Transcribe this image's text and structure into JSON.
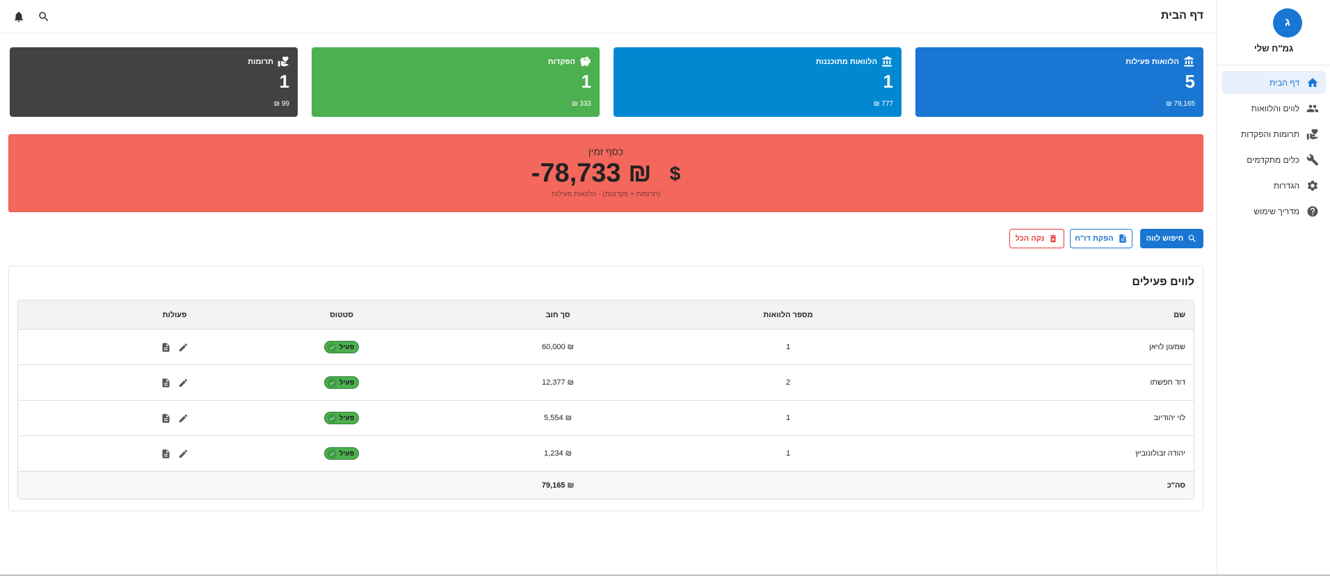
{
  "app": {
    "avatar_letter": "ג",
    "name": "גמ\"ח שלי"
  },
  "sidebar": {
    "items": [
      {
        "label": "דף הבית",
        "icon": "home-icon",
        "active": true
      },
      {
        "label": "לווים והלוואות",
        "icon": "people-icon"
      },
      {
        "label": "תרומות והפקדות",
        "icon": "volunteer-hand-heart-icon"
      },
      {
        "label": "כלים מתקדמים",
        "icon": "wrench-icon"
      },
      {
        "label": "הגדרות",
        "icon": "gear-icon"
      },
      {
        "label": "מדריך שימוש",
        "icon": "help-circle-icon"
      }
    ]
  },
  "topbar": {
    "title": "דף הבית",
    "icons": [
      "search-icon",
      "bell-icon"
    ]
  },
  "stats": [
    {
      "label": "הלוואות פעילות",
      "count": "5",
      "sum": "79,165 ₪",
      "color": "#1976d2",
      "icon": "bank-icon"
    },
    {
      "label": "הלוואות מתוכננות",
      "count": "1",
      "sum": "777 ₪",
      "color": "#0288d1",
      "icon": "bank-icon"
    },
    {
      "label": "הפקדות",
      "count": "1",
      "sum": "333 ₪",
      "color": "#4caf50",
      "icon": "piggy-bank-icon"
    },
    {
      "label": "תרומות",
      "count": "1",
      "sum": "99 ₪",
      "color": "#424242",
      "icon": "hand-heart-icon"
    }
  ],
  "balance": {
    "label": "כסף זמין",
    "value": "-78,733 ₪",
    "currency_symbol": "$",
    "note": "(תרומות + פקדונות) - הלוואות פעילות",
    "color": "#f4675c"
  },
  "actions": {
    "search_label": "חיפוש לווה",
    "report_label": "הפקת דו\"ח",
    "clear_label": "נקה הכל"
  },
  "borrowers": {
    "title": "לווים פעילים",
    "columns": {
      "name": "שם",
      "count": "מספר הלוואות",
      "debt": "סך חוב",
      "status": "סטטוס",
      "actions": "פעולות"
    },
    "rows": [
      {
        "name": "שמעון לויאן",
        "count": "1",
        "debt": "60,000 ₪",
        "status": "פעיל"
      },
      {
        "name": "דוד חפשתו",
        "count": "2",
        "debt": "12,377 ₪",
        "status": "פעיל"
      },
      {
        "name": "לוי יהודיוב",
        "count": "1",
        "debt": "5,554 ₪",
        "status": "פעיל"
      },
      {
        "name": "יהודה זבולונוביץ",
        "count": "1",
        "debt": "1,234 ₪",
        "status": "פעיל"
      }
    ],
    "total_label": "סה\"כ",
    "total_debt": "79,165 ₪"
  }
}
